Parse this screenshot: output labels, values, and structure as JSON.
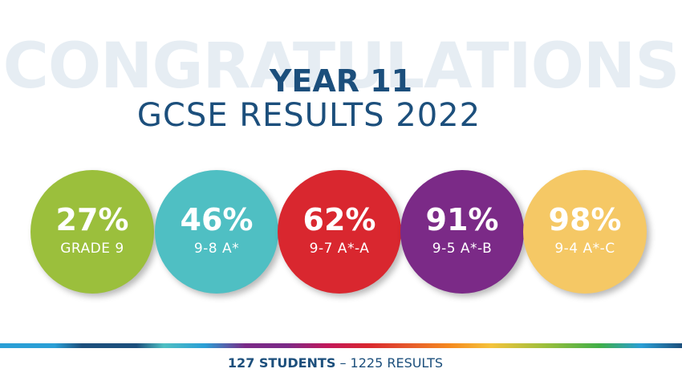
{
  "background_word": "CONGRATULATIONS",
  "title": {
    "line1": "YEAR 11",
    "line2": "GCSE RESULTS 2022"
  },
  "stats": [
    {
      "percent": "27%",
      "label": "GRADE 9",
      "color": "#9bbf3c"
    },
    {
      "percent": "46%",
      "label": "9-8 A*",
      "color": "#4fbfc3"
    },
    {
      "percent": "62%",
      "label": "9-7 A*-A",
      "color": "#d9272f"
    },
    {
      "percent": "91%",
      "label": "9-5 A*-B",
      "color": "#7b2a87"
    },
    {
      "percent": "98%",
      "label": "9-4 A*-C",
      "color": "#f5c865"
    }
  ],
  "footer": {
    "students": "127 STUDENTS",
    "separator": " – ",
    "results": "1225 RESULTS"
  },
  "colors": {
    "title": "#1c4f7c",
    "background_word": "#e6edf3"
  }
}
